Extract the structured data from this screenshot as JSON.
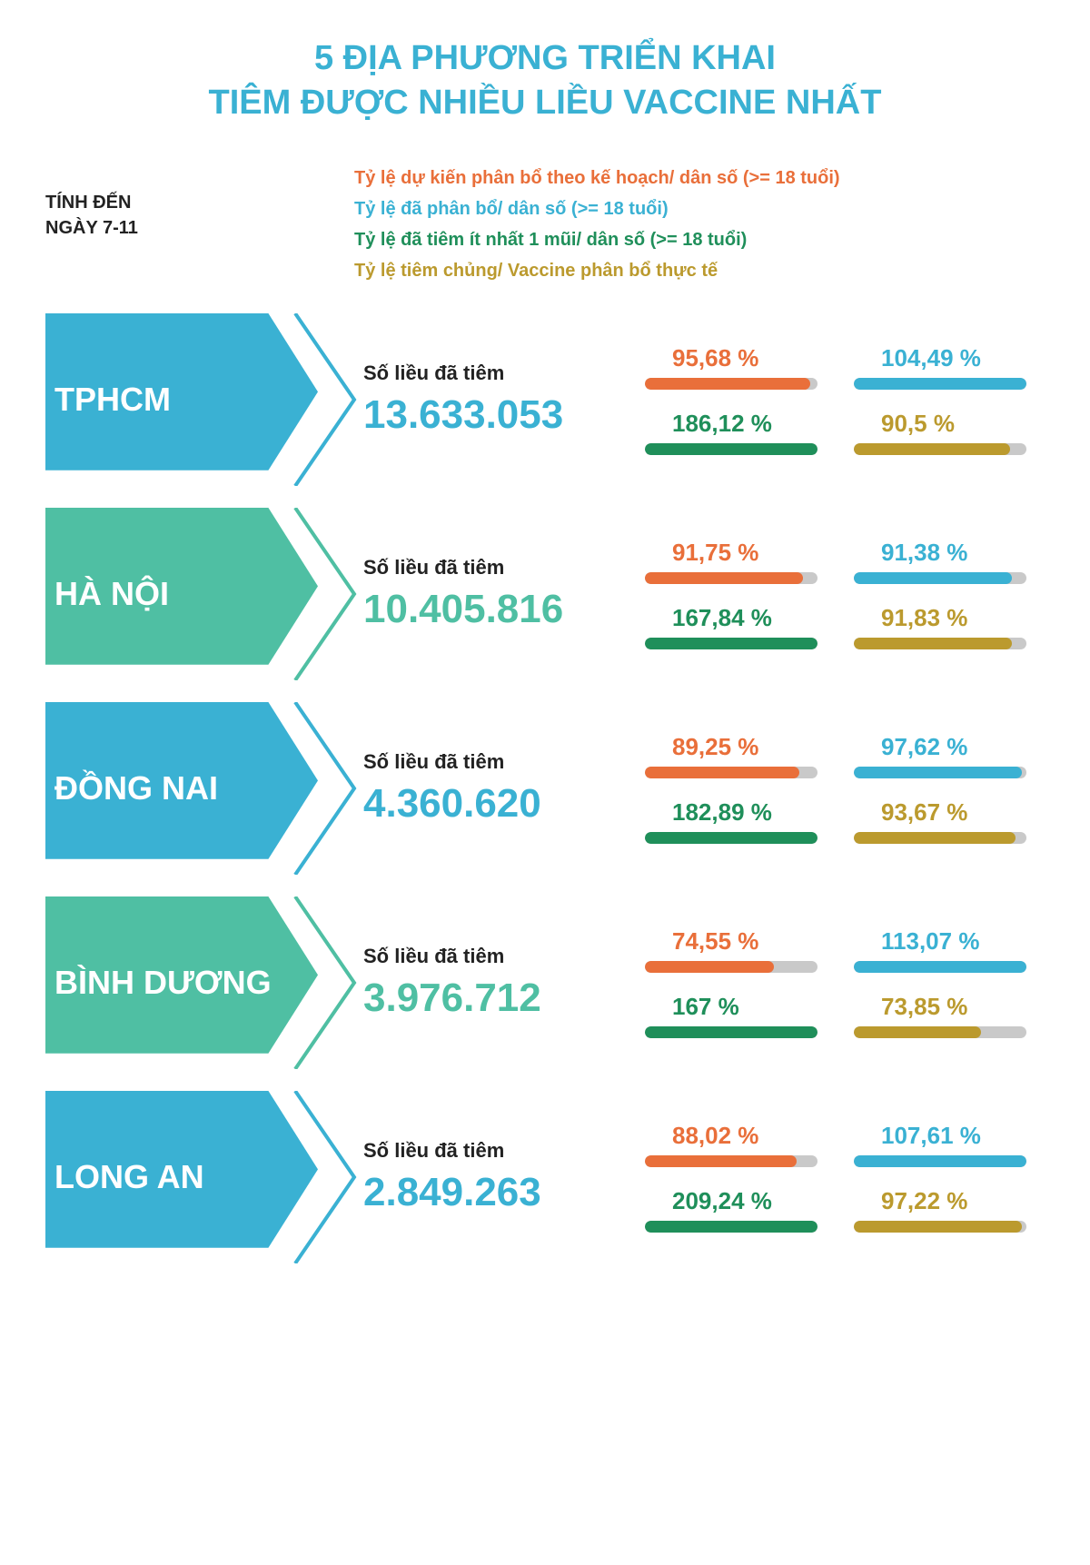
{
  "colors": {
    "title": "#3ab1d3",
    "orange": "#e96f3a",
    "blue": "#3ab1d3",
    "green": "#1f8f5a",
    "gold": "#bb9a2e",
    "track": "#c9c9c9",
    "text": "#222222"
  },
  "title_line1": "5 ĐỊA PHƯƠNG TRIỂN KHAI",
  "title_line2": "TIÊM ĐƯỢC NHIỀU LIỀU VACCINE NHẤT",
  "date_line1": "TÍNH ĐẾN",
  "date_line2": "NGÀY 7-11",
  "legend": {
    "orange": "Tỷ lệ dự kiến phân bổ theo kế hoạch/ dân số (>= 18 tuổi)",
    "blue": "Tỷ lệ đã phân bổ/ dân số (>= 18 tuổi)",
    "green": "Tỷ lệ đã tiêm ít nhất 1 mũi/ dân số (>= 18 tuổi)",
    "gold": "Tỷ lệ tiêm chủng/ Vaccine phân bổ thực tế"
  },
  "doses_label": "Số liều đã tiêm",
  "rows": [
    {
      "name": "TPHCM",
      "bg_color": "#3ab1d3",
      "outline_color": "#3ab1d3",
      "doses_value": "13.633.053",
      "value_color": "#3ab1d3",
      "stats": {
        "orange": {
          "text": "95,68 %",
          "pct": 95.68
        },
        "blue": {
          "text": "104,49 %",
          "pct": 100
        },
        "green": {
          "text": "186,12 %",
          "pct": 100
        },
        "gold": {
          "text": "90,5 %",
          "pct": 90.5
        }
      }
    },
    {
      "name": "HÀ NỘI",
      "bg_color": "#4fbfa3",
      "outline_color": "#4fbfa3",
      "doses_value": "10.405.816",
      "value_color": "#4fbfa3",
      "stats": {
        "orange": {
          "text": "91,75 %",
          "pct": 91.75
        },
        "blue": {
          "text": "91,38 %",
          "pct": 91.38
        },
        "green": {
          "text": "167,84 %",
          "pct": 100
        },
        "gold": {
          "text": "91,83 %",
          "pct": 91.83
        }
      }
    },
    {
      "name": "ĐỒNG NAI",
      "bg_color": "#3ab1d3",
      "outline_color": "#3ab1d3",
      "doses_value": "4.360.620",
      "value_color": "#3ab1d3",
      "stats": {
        "orange": {
          "text": "89,25 %",
          "pct": 89.25
        },
        "blue": {
          "text": "97,62 %",
          "pct": 97.62
        },
        "green": {
          "text": "182,89 %",
          "pct": 100
        },
        "gold": {
          "text": "93,67 %",
          "pct": 93.67
        }
      }
    },
    {
      "name": "BÌNH DƯƠNG",
      "bg_color": "#4fbfa3",
      "outline_color": "#4fbfa3",
      "doses_value": "3.976.712",
      "value_color": "#4fbfa3",
      "stats": {
        "orange": {
          "text": "74,55 %",
          "pct": 74.55
        },
        "blue": {
          "text": "113,07 %",
          "pct": 100
        },
        "green": {
          "text": "167 %",
          "pct": 100
        },
        "gold": {
          "text": "73,85 %",
          "pct": 73.85
        }
      }
    },
    {
      "name": "LONG AN",
      "bg_color": "#3ab1d3",
      "outline_color": "#3ab1d3",
      "doses_value": "2.849.263",
      "value_color": "#3ab1d3",
      "stats": {
        "orange": {
          "text": "88,02 %",
          "pct": 88.02
        },
        "blue": {
          "text": "107,61 %",
          "pct": 100
        },
        "green": {
          "text": "209,24 %",
          "pct": 100
        },
        "gold": {
          "text": "97,22 %",
          "pct": 97.22
        }
      }
    }
  ]
}
